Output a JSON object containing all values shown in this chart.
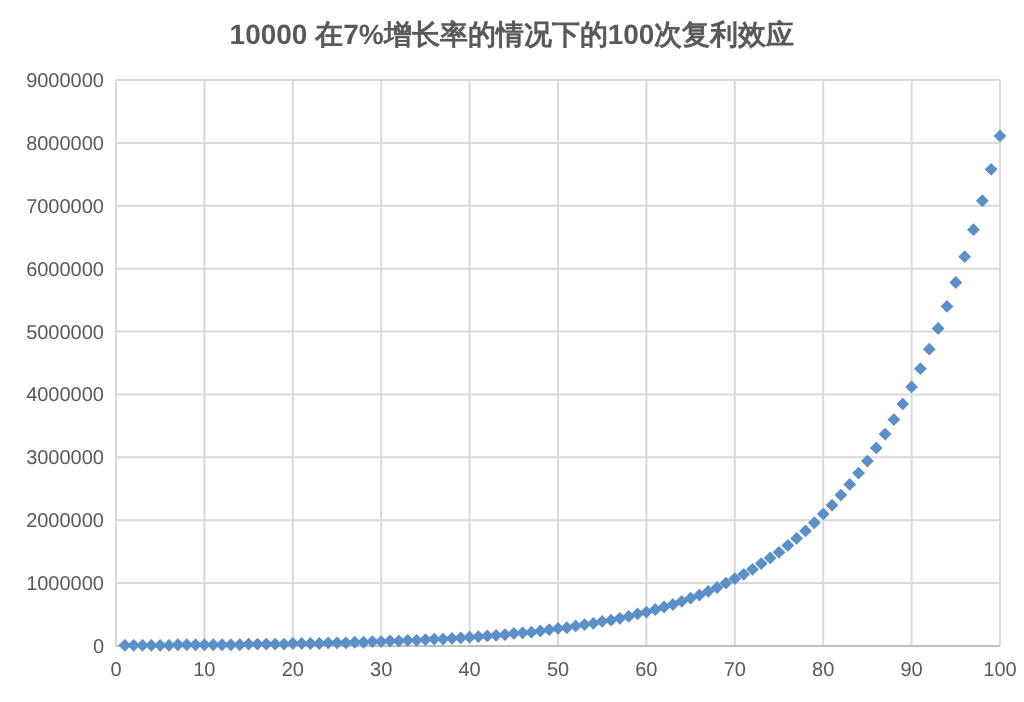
{
  "chart_data": {
    "type": "scatter",
    "title": "10000 在7%增长率的情况下的100次复利效应",
    "x": [
      1,
      2,
      3,
      4,
      5,
      6,
      7,
      8,
      9,
      10,
      11,
      12,
      13,
      14,
      15,
      16,
      17,
      18,
      19,
      20,
      21,
      22,
      23,
      24,
      25,
      26,
      27,
      28,
      29,
      30,
      31,
      32,
      33,
      34,
      35,
      36,
      37,
      38,
      39,
      40,
      41,
      42,
      43,
      44,
      45,
      46,
      47,
      48,
      49,
      50,
      51,
      52,
      53,
      54,
      55,
      56,
      57,
      58,
      59,
      60,
      61,
      62,
      63,
      64,
      65,
      66,
      67,
      68,
      69,
      70,
      71,
      72,
      73,
      74,
      75,
      76,
      77,
      78,
      79,
      80,
      81,
      82,
      83,
      84,
      85,
      86,
      87,
      88,
      89,
      90,
      91,
      92,
      93,
      94,
      95,
      96,
      97,
      98,
      99,
      100
    ],
    "series": [
      {
        "color": "#5b8fc7",
        "values": [
          10000,
          10000,
          10000,
          10000,
          10000,
          10000,
          20000,
          20000,
          20000,
          20000,
          20000,
          20000,
          20000,
          20000,
          30000,
          30000,
          30000,
          30000,
          30000,
          40000,
          40000,
          40000,
          40000,
          50000,
          50000,
          50000,
          60000,
          60000,
          70000,
          70000,
          80000,
          80000,
          90000,
          90000,
          100000,
          110000,
          110000,
          120000,
          130000,
          140000,
          150000,
          160000,
          170000,
          180000,
          200000,
          210000,
          220000,
          240000,
          260000,
          280000,
          290000,
          320000,
          340000,
          360000,
          390000,
          410000,
          440000,
          470000,
          510000,
          540000,
          580000,
          620000,
          660000,
          710000,
          760000,
          810000,
          870000,
          930000,
          1000000,
          1070000,
          1140000,
          1220000,
          1310000,
          1400000,
          1490000,
          1600000,
          1710000,
          1830000,
          1960000,
          2100000,
          2240000,
          2400000,
          2570000,
          2750000,
          2940000,
          3150000,
          3370000,
          3600000,
          3850000,
          4120000,
          4410000,
          4720000,
          5050000,
          5400000,
          5780000,
          6190000,
          6620000,
          7080000,
          7580000,
          8110000
        ]
      }
    ],
    "xlim": [
      0,
      100
    ],
    "xticks": [
      0,
      10,
      20,
      30,
      40,
      50,
      60,
      70,
      80,
      90,
      100
    ],
    "ylim": [
      0,
      9000000
    ],
    "yticks": [
      0,
      1000000,
      2000000,
      3000000,
      4000000,
      5000000,
      6000000,
      7000000,
      8000000,
      9000000
    ],
    "grid": true,
    "marker": "diamond"
  }
}
